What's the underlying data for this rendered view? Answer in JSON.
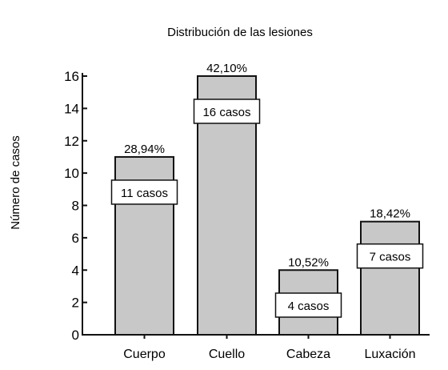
{
  "chart_data": {
    "type": "bar",
    "title": "Distribución de las lesiones",
    "xlabel": "",
    "ylabel": "Número de casos",
    "categories": [
      "Cuerpo",
      "Cuello",
      "Cabeza",
      "Luxación"
    ],
    "values": [
      11,
      16,
      4,
      7
    ],
    "percent_labels": [
      "28,94%",
      "42,10%",
      "10,52%",
      "18,42%"
    ],
    "count_labels": [
      "11 casos",
      "16 casos",
      "4 casos",
      "7 casos"
    ],
    "ylim": [
      0,
      16
    ],
    "yticks": [
      0,
      2,
      4,
      6,
      8,
      10,
      12,
      14,
      16
    ],
    "grid": false,
    "bar_color": "#c8c8c8",
    "edge_color": "#111111"
  }
}
